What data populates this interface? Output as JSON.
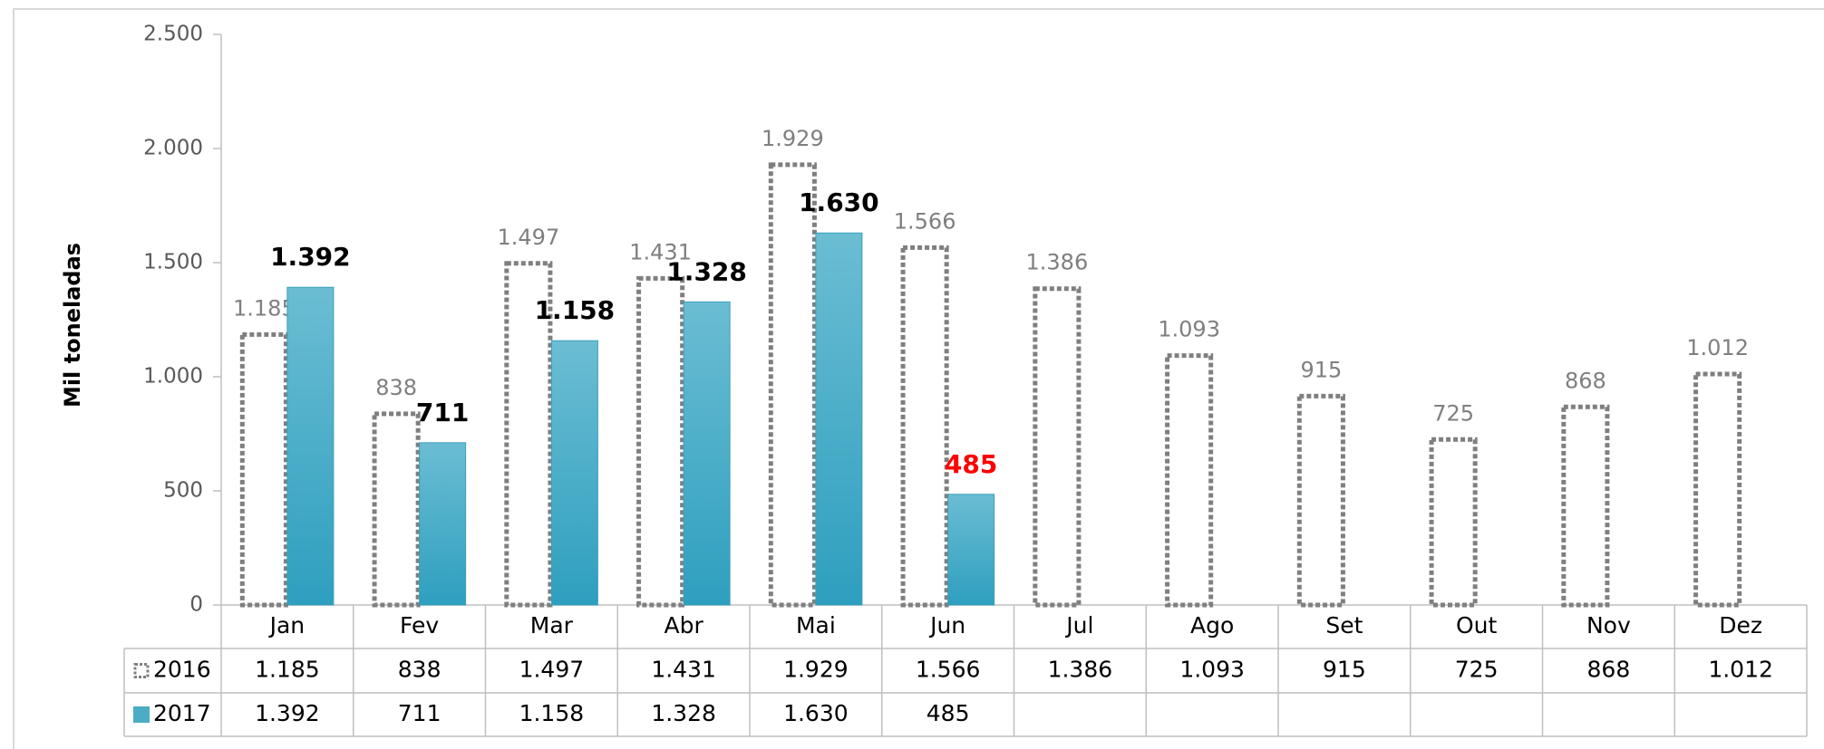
{
  "chart_data": {
    "type": "bar",
    "y_label": "Mil toneladas",
    "categories": [
      "Jan",
      "Fev",
      "Mar",
      "Abr",
      "Mai",
      "Jun",
      "Jul",
      "Ago",
      "Set",
      "Out",
      "Nov",
      "Dez"
    ],
    "series": [
      {
        "name": "2016",
        "color": "#7f7f7f",
        "style": "dashed-outline",
        "values": [
          1185,
          838,
          1497,
          1431,
          1929,
          1566,
          1386,
          1093,
          915,
          725,
          868,
          1012
        ],
        "value_labels": [
          "1.185",
          "838",
          "1.497",
          "1.431",
          "1.929",
          "1.566",
          "1.386",
          "1.093",
          "915",
          "725",
          "868",
          "1.012"
        ],
        "label_colors": [
          "#7f7f7f",
          "#7f7f7f",
          "#7f7f7f",
          "#7f7f7f",
          "#7f7f7f",
          "#7f7f7f",
          "#7f7f7f",
          "#7f7f7f",
          "#7f7f7f",
          "#7f7f7f",
          "#7f7f7f",
          "#7f7f7f"
        ]
      },
      {
        "name": "2017",
        "color": "#4bacc6",
        "style": "filled",
        "values": [
          1392,
          711,
          1158,
          1328,
          1630,
          485,
          null,
          null,
          null,
          null,
          null,
          null
        ],
        "value_labels": [
          "1.392",
          "711",
          "1.158",
          "1.328",
          "1.630",
          "485",
          null,
          null,
          null,
          null,
          null,
          null
        ],
        "label_colors": [
          "#000000",
          "#000000",
          "#000000",
          "#000000",
          "#000000",
          "#ff0000",
          null,
          null,
          null,
          null,
          null,
          null
        ]
      }
    ],
    "ylim": [
      0,
      2500
    ],
    "yticks": [
      0,
      500,
      {
        "value": 1000,
        "label": "1.000"
      },
      {
        "value": 1500,
        "label": "1.500"
      },
      {
        "value": 2000,
        "label": "2.000"
      },
      {
        "value": 2500,
        "label": "2.500"
      }
    ],
    "grid": false,
    "data_table": true
  }
}
